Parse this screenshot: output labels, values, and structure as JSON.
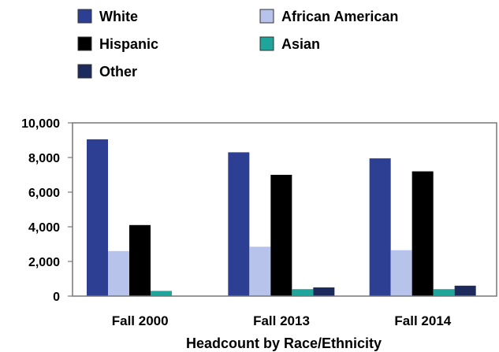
{
  "chart_data": {
    "type": "bar",
    "title": "",
    "xlabel": "Headcount by Race/Ethnicity",
    "ylabel": "",
    "categories": [
      "Fall 2000",
      "Fall 2013",
      "Fall 2014"
    ],
    "ylim": [
      0,
      10000
    ],
    "yticks": [
      0,
      2000,
      4000,
      6000,
      8000,
      10000
    ],
    "ytick_labels": [
      "0",
      "2,000",
      "4,000",
      "6,000",
      "8,000",
      "10,000"
    ],
    "grid": false,
    "legend_position": "top",
    "series": [
      {
        "name": "White",
        "color": "#2d3f92",
        "values": [
          9050,
          8300,
          7950
        ]
      },
      {
        "name": "African American",
        "color": "#b7c3ea",
        "values": [
          2600,
          2850,
          2650
        ]
      },
      {
        "name": "Hispanic",
        "color": "#000000",
        "values": [
          4100,
          7000,
          7200
        ]
      },
      {
        "name": "Asian",
        "color": "#1fa59a",
        "values": [
          300,
          400,
          400
        ]
      },
      {
        "name": "Other",
        "color": "#1c2a5c",
        "values": [
          0,
          500,
          600
        ]
      }
    ]
  }
}
